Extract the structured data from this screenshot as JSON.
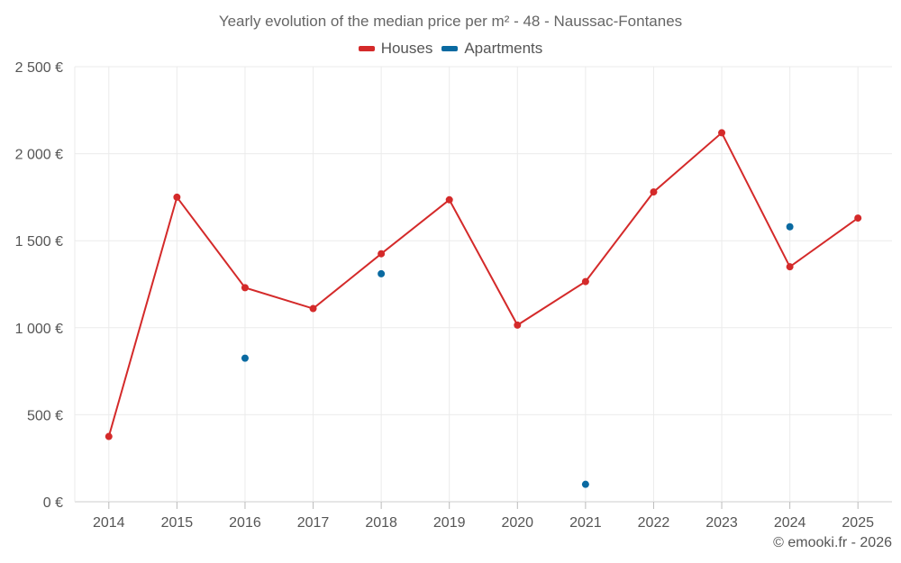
{
  "chart_data": {
    "type": "line",
    "title": "Yearly evolution of the median price per m² - 48 - Naussac-Fontanes",
    "categories": [
      "2014",
      "2015",
      "2016",
      "2017",
      "2018",
      "2019",
      "2020",
      "2021",
      "2022",
      "2023",
      "2024",
      "2025"
    ],
    "y_ticks": [
      0,
      500,
      1000,
      1500,
      2000,
      2500
    ],
    "y_tick_labels": [
      "0 €",
      "500 €",
      "1 000 €",
      "1 500 €",
      "2 000 €",
      "2 500 €"
    ],
    "ylim": [
      0,
      2500
    ],
    "grid": true,
    "legend_position": "top-center",
    "series": [
      {
        "name": "Houses",
        "color": "#d42a2a",
        "style": "line-markers",
        "values": [
          375,
          1750,
          1230,
          1110,
          1425,
          1735,
          1015,
          1265,
          1780,
          2120,
          1350,
          1630
        ]
      },
      {
        "name": "Apartments",
        "color": "#0a6aa1",
        "style": "markers",
        "values": [
          null,
          null,
          825,
          null,
          1310,
          null,
          null,
          100,
          null,
          null,
          1580,
          null
        ]
      }
    ]
  },
  "legend": {
    "houses_label": "Houses",
    "apartments_label": "Apartments",
    "houses_color": "#d42a2a",
    "apartments_color": "#0a6aa1"
  },
  "footer": {
    "copyright": "© emooki.fr - 2026"
  }
}
